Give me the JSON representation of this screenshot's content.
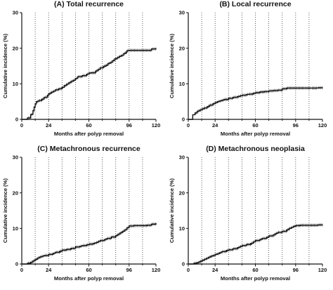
{
  "figure": {
    "panels": [
      {
        "title": "(A)  Total recurrence",
        "xlabel": "Months after polyp removal",
        "ylabel": "Cumulative incidence (%)"
      },
      {
        "title": "(B)  Local recurrence",
        "xlabel": "Months after polyp removal",
        "ylabel": "Cumulative incidence (%)"
      },
      {
        "title": "(C)  Metachronous recurrence",
        "xlabel": "Months after polyp removal",
        "ylabel": "Cumulative incidence (%)"
      },
      {
        "title": "(D)  Metachronous neoplasia",
        "xlabel": "Months after polyp removal",
        "ylabel": "Cumulative incidence (%)"
      }
    ]
  },
  "chart_data": [
    {
      "type": "line",
      "title": "(A)  Total recurrence",
      "xlabel": "Months after polyp removal",
      "ylabel": "Cumulative incidence (%)",
      "xlim": [
        0,
        120
      ],
      "ylim": [
        0,
        30
      ],
      "xticks": [
        0,
        24,
        60,
        96,
        120
      ],
      "yticks": [
        0,
        10,
        20,
        30
      ],
      "vertical_dotted_gridlines_x": [
        12,
        24,
        36,
        48,
        60,
        72,
        84,
        96,
        108
      ],
      "step": true,
      "censor_marks": true,
      "x": [
        0,
        5,
        8,
        10,
        11,
        12,
        13,
        15,
        18,
        20,
        23,
        24,
        26,
        28,
        30,
        33,
        36,
        38,
        40,
        42,
        44,
        46,
        48,
        50,
        54,
        58,
        60,
        62,
        66,
        68,
        70,
        73,
        75,
        77,
        79,
        81,
        83,
        85,
        87,
        89,
        91,
        93,
        94,
        96,
        100,
        104,
        108,
        112,
        116,
        120
      ],
      "y": [
        0,
        0.4,
        1.4,
        2.5,
        3.5,
        4.4,
        5.0,
        5.3,
        5.7,
        6.2,
        6.8,
        7.2,
        7.6,
        7.9,
        8.3,
        8.6,
        9.0,
        9.5,
        9.9,
        10.3,
        10.7,
        11.0,
        11.5,
        12.0,
        12.3,
        12.7,
        13.0,
        13.1,
        13.6,
        14.0,
        14.5,
        14.9,
        15.2,
        15.7,
        16.0,
        16.5,
        17.0,
        17.3,
        17.7,
        18.0,
        18.5,
        18.9,
        19.3,
        19.4,
        19.4,
        19.4,
        19.4,
        19.4,
        19.8,
        20.0
      ]
    },
    {
      "type": "line",
      "title": "(B)  Local recurrence",
      "xlabel": "Months after polyp removal",
      "ylabel": "Cumulative incidence (%)",
      "xlim": [
        0,
        120
      ],
      "ylim": [
        0,
        30
      ],
      "xticks": [
        0,
        24,
        60,
        96,
        120
      ],
      "yticks": [
        0,
        10,
        20,
        30
      ],
      "vertical_dotted_gridlines_x": [
        12,
        24,
        36,
        48,
        60,
        72,
        84,
        96,
        108
      ],
      "step": true,
      "censor_marks": true,
      "x": [
        0,
        4,
        6,
        8,
        10,
        12,
        14,
        17,
        19,
        22,
        24,
        26,
        28,
        30,
        32,
        36,
        40,
        44,
        46,
        48,
        52,
        54,
        58,
        60,
        64,
        68,
        72,
        76,
        80,
        84,
        88,
        96,
        104,
        110,
        116,
        120
      ],
      "y": [
        0,
        1.3,
        1.8,
        2.3,
        2.6,
        2.9,
        3.2,
        3.6,
        4.0,
        4.4,
        4.7,
        5.0,
        5.2,
        5.4,
        5.6,
        5.9,
        6.2,
        6.4,
        6.6,
        6.8,
        7.0,
        7.1,
        7.3,
        7.5,
        7.7,
        7.8,
        8.0,
        8.1,
        8.2,
        8.6,
        8.8,
        8.8,
        8.8,
        8.8,
        8.9,
        9.0
      ]
    },
    {
      "type": "line",
      "title": "(C)  Metachronous recurrence",
      "xlabel": "Months after polyp removal",
      "ylabel": "Cumulative incidence (%)",
      "xlim": [
        0,
        120
      ],
      "ylim": [
        0,
        30
      ],
      "xticks": [
        0,
        24,
        60,
        96,
        120
      ],
      "yticks": [
        0,
        10,
        20,
        30
      ],
      "vertical_dotted_gridlines_x": [
        12,
        24,
        36,
        48,
        60,
        72,
        84,
        96,
        108
      ],
      "step": true,
      "censor_marks": true,
      "x": [
        0,
        5,
        8,
        10,
        12,
        14,
        16,
        18,
        20,
        24,
        28,
        30,
        34,
        36,
        40,
        44,
        48,
        52,
        54,
        58,
        60,
        64,
        66,
        68,
        70,
        74,
        76,
        80,
        84,
        86,
        88,
        90,
        92,
        94,
        96,
        100,
        104,
        108,
        112,
        116,
        120
      ],
      "y": [
        0,
        0.2,
        0.5,
        0.9,
        1.3,
        1.7,
        2.0,
        2.2,
        2.4,
        2.7,
        3.0,
        3.3,
        3.6,
        3.9,
        4.1,
        4.4,
        4.8,
        5.0,
        5.2,
        5.4,
        5.6,
        5.8,
        6.0,
        6.3,
        6.6,
        6.9,
        7.2,
        7.6,
        8.0,
        8.4,
        8.8,
        9.2,
        9.6,
        10.2,
        10.7,
        10.8,
        10.8,
        10.8,
        10.9,
        11.2,
        11.5
      ]
    },
    {
      "type": "line",
      "title": "(D)  Metachronous neoplasia",
      "xlabel": "Months after polyp removal",
      "ylabel": "Cumulative incidence (%)",
      "xlim": [
        0,
        120
      ],
      "ylim": [
        0,
        30
      ],
      "xticks": [
        0,
        24,
        60,
        96,
        120
      ],
      "yticks": [
        0,
        10,
        20,
        30
      ],
      "vertical_dotted_gridlines_x": [
        12,
        24,
        36,
        48,
        60,
        72,
        84,
        96,
        108
      ],
      "step": true,
      "censor_marks": true,
      "x": [
        0,
        5,
        8,
        10,
        12,
        14,
        16,
        18,
        20,
        22,
        24,
        26,
        28,
        30,
        34,
        36,
        40,
        44,
        46,
        48,
        52,
        56,
        58,
        60,
        64,
        66,
        70,
        72,
        76,
        78,
        80,
        84,
        88,
        90,
        92,
        94,
        96,
        100,
        104,
        108,
        112,
        116,
        120
      ],
      "y": [
        0,
        0.2,
        0.4,
        0.7,
        1.0,
        1.3,
        1.6,
        1.9,
        2.2,
        2.4,
        2.7,
        2.9,
        3.2,
        3.5,
        3.8,
        4.0,
        4.3,
        4.6,
        4.9,
        5.2,
        5.5,
        5.8,
        6.2,
        6.6,
        6.9,
        7.2,
        7.5,
        7.9,
        8.2,
        8.6,
        8.9,
        9.2,
        9.6,
        10.0,
        10.3,
        10.6,
        10.8,
        10.9,
        10.9,
        10.9,
        10.9,
        11.0,
        11.1
      ]
    }
  ]
}
